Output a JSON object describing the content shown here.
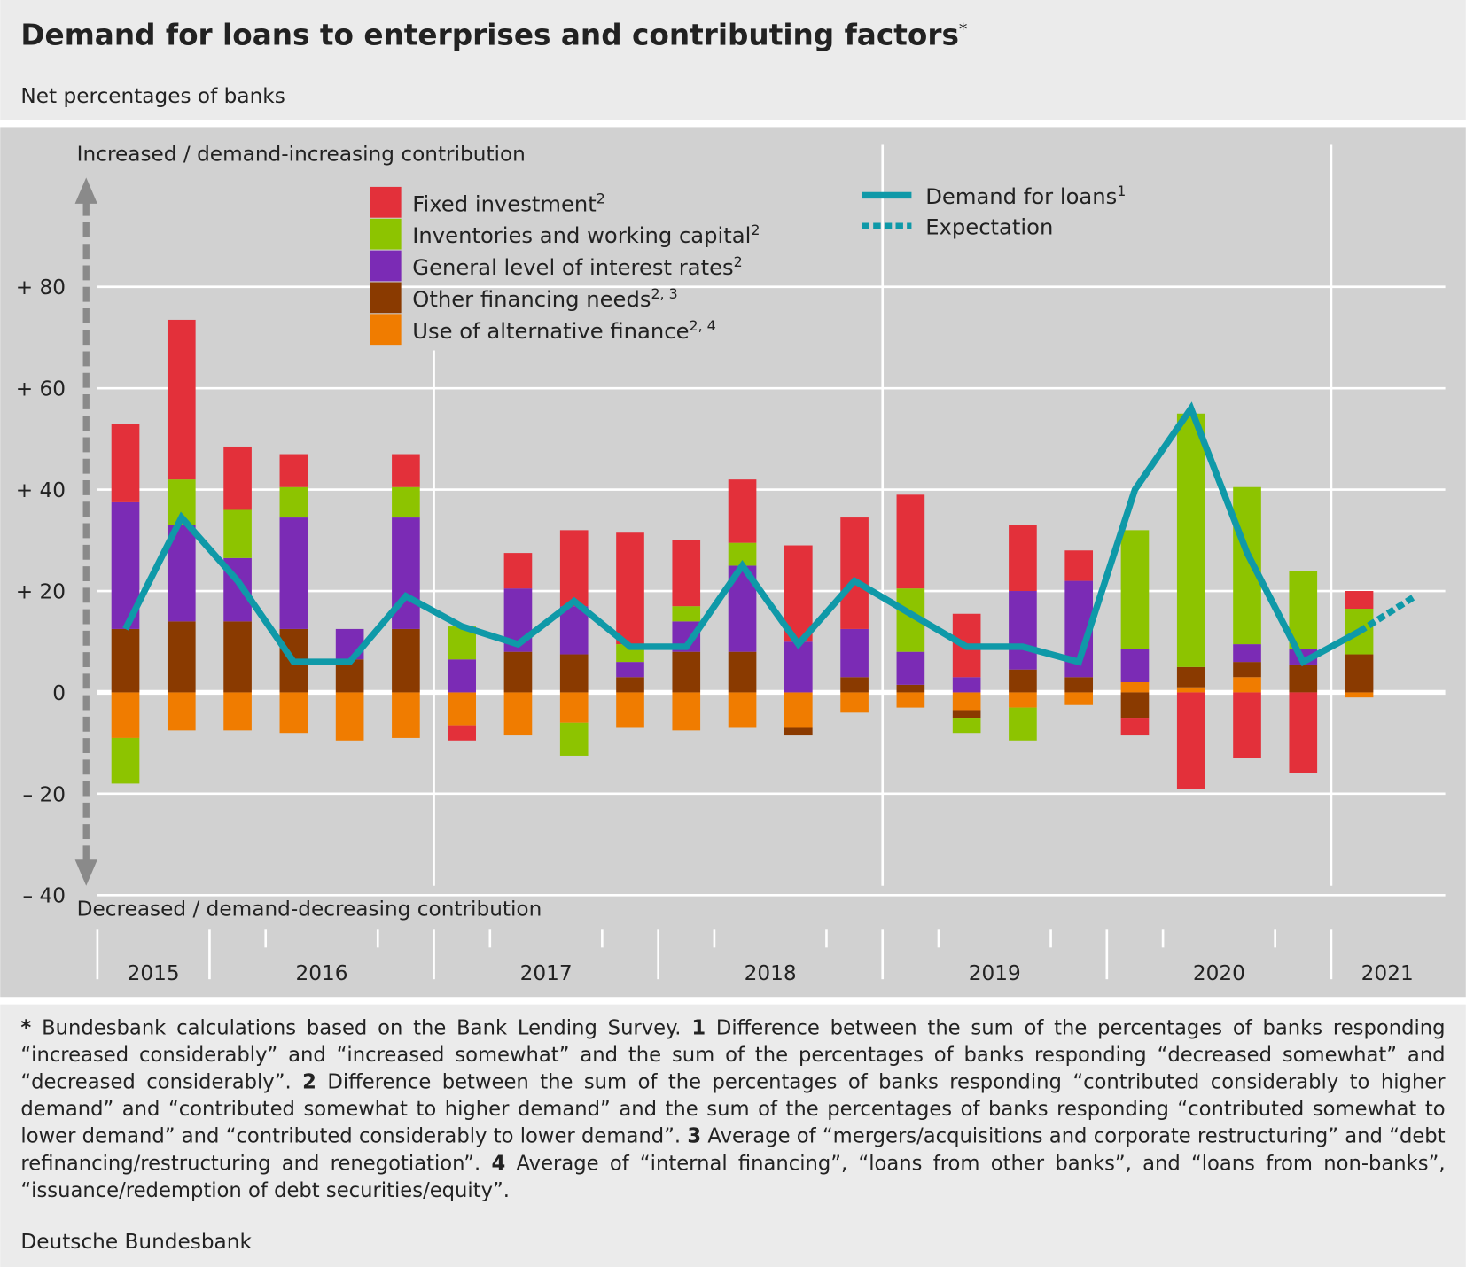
{
  "chart_data": {
    "type": "bar",
    "title": "Demand for loans to enterprises and contributing factors",
    "title_note": "*",
    "subtitle": "Net percentages of banks",
    "annotations": {
      "top": "Increased / demand-increasing contribution",
      "bottom": "Decreased / demand-decreasing contribution"
    },
    "categories": [
      null,
      null,
      null,
      null,
      null,
      null,
      null,
      null,
      null,
      null,
      null,
      null,
      null,
      null,
      null,
      null,
      null,
      null,
      null,
      null,
      null,
      null,
      null,
      null
    ],
    "x_groups": [
      {
        "label": "2015",
        "count": 2
      },
      {
        "label": "2016",
        "count": 4
      },
      {
        "label": "2017",
        "count": 4
      },
      {
        "label": "2018",
        "count": 4
      },
      {
        "label": "2019",
        "count": 4
      },
      {
        "label": "2020",
        "count": 4
      },
      {
        "label": "2021",
        "count": 2
      }
    ],
    "stacked": true,
    "series": [
      {
        "name": "Fixed investment",
        "note": "2",
        "color": "#e3303a",
        "values": [
          15.5,
          31.5,
          12.5,
          6.5,
          0,
          6.5,
          -3,
          7,
          15,
          22,
          13,
          12.5,
          19,
          22,
          18.5,
          12.5,
          13,
          6,
          -3.5,
          -19,
          -13,
          -16,
          3.5,
          null
        ]
      },
      {
        "name": "Inventories and working capital",
        "note": "2",
        "color": "#8dc400",
        "values": [
          -9,
          9,
          9.5,
          6,
          0,
          6,
          6.5,
          0,
          -6.5,
          3.5,
          3,
          4.5,
          0,
          0,
          12.5,
          -3,
          -6.5,
          0,
          23.5,
          50,
          31,
          15.5,
          9,
          null
        ]
      },
      {
        "name": "General level of interest rates",
        "note": "2",
        "color": "#7b2bb5",
        "values": [
          25,
          19,
          12.5,
          22,
          6,
          22,
          6.5,
          12.5,
          9.5,
          3,
          6,
          17,
          10,
          9.5,
          6.5,
          3,
          15.5,
          19,
          6.5,
          0,
          3.5,
          3,
          0,
          null
        ]
      },
      {
        "name": "Other financing needs",
        "note": "2, 3",
        "color": "#8a3a00",
        "values": [
          12.5,
          14,
          14,
          12.5,
          6.5,
          12.5,
          0,
          8,
          7.5,
          3,
          8,
          8,
          -1.5,
          3,
          1.5,
          -1.5,
          4.5,
          3,
          -5,
          4,
          3,
          5.5,
          7.5,
          null
        ]
      },
      {
        "name": "Use of alternative finance",
        "note": "2, 4",
        "color": "#f07c00",
        "values": [
          -9,
          -7.5,
          -7.5,
          -8,
          -9.5,
          -9,
          -6.5,
          -8.5,
          -6,
          -7,
          -7.5,
          -7,
          -7,
          -4,
          -3,
          -3.5,
          -3,
          -2.5,
          2,
          1,
          3,
          0,
          -1,
          null
        ]
      }
    ],
    "lines": [
      {
        "name": "Demand for loans",
        "note": "1",
        "color": "#0f99a8",
        "values": [
          12.5,
          34.5,
          22,
          6,
          6,
          19,
          13,
          9.5,
          18,
          9,
          9,
          25,
          9.5,
          22,
          15.5,
          9,
          9,
          6,
          40,
          56,
          27.5,
          6,
          12,
          null
        ]
      },
      {
        "name": "Expectation",
        "color": "#0f99a8",
        "dashed": true,
        "values": [
          null,
          null,
          null,
          null,
          null,
          null,
          null,
          null,
          null,
          null,
          null,
          null,
          null,
          null,
          null,
          null,
          null,
          null,
          null,
          null,
          null,
          null,
          null,
          19
        ]
      }
    ],
    "ylim": [
      -40,
      80
    ],
    "yticks": [
      {
        "value": 80,
        "label": "+ 80"
      },
      {
        "value": 60,
        "label": "+ 60"
      },
      {
        "value": 40,
        "label": "+ 40"
      },
      {
        "value": 20,
        "label": "+ 20"
      },
      0,
      {
        "value": -20,
        "label": "– 20"
      },
      {
        "value": -40,
        "label": "– 40"
      }
    ],
    "grid": true,
    "footnotes": [
      {
        "mark": "*",
        "text": "Bundesbank calculations based on the Bank Lending Survey."
      },
      {
        "mark": "1",
        "text": "Difference between the sum of the percentages of banks responding “increased considerably” and “increased somewhat” and the sum of the percentages of banks responding “decreased somewhat” and “decreased considerably”."
      },
      {
        "mark": "2",
        "text": "Difference between the sum of the percentages of banks responding “contributed considerably to higher demand” and “contributed somewhat to higher demand” and the sum of the percentages of banks responding “contributed somewhat to lower demand” and “contributed considerably to lower demand”."
      },
      {
        "mark": "3",
        "text": "Average of “mergers/acquisitions and corporate restructuring” and “debt refinancing/restructuring and renegotiation”."
      },
      {
        "mark": "4",
        "text": "Average of “internal financing”, “loans from other banks”, and “loans from non-banks”, “issuance/redemption of debt securities/equity”."
      }
    ],
    "source": "Deutsche Bundesbank"
  }
}
